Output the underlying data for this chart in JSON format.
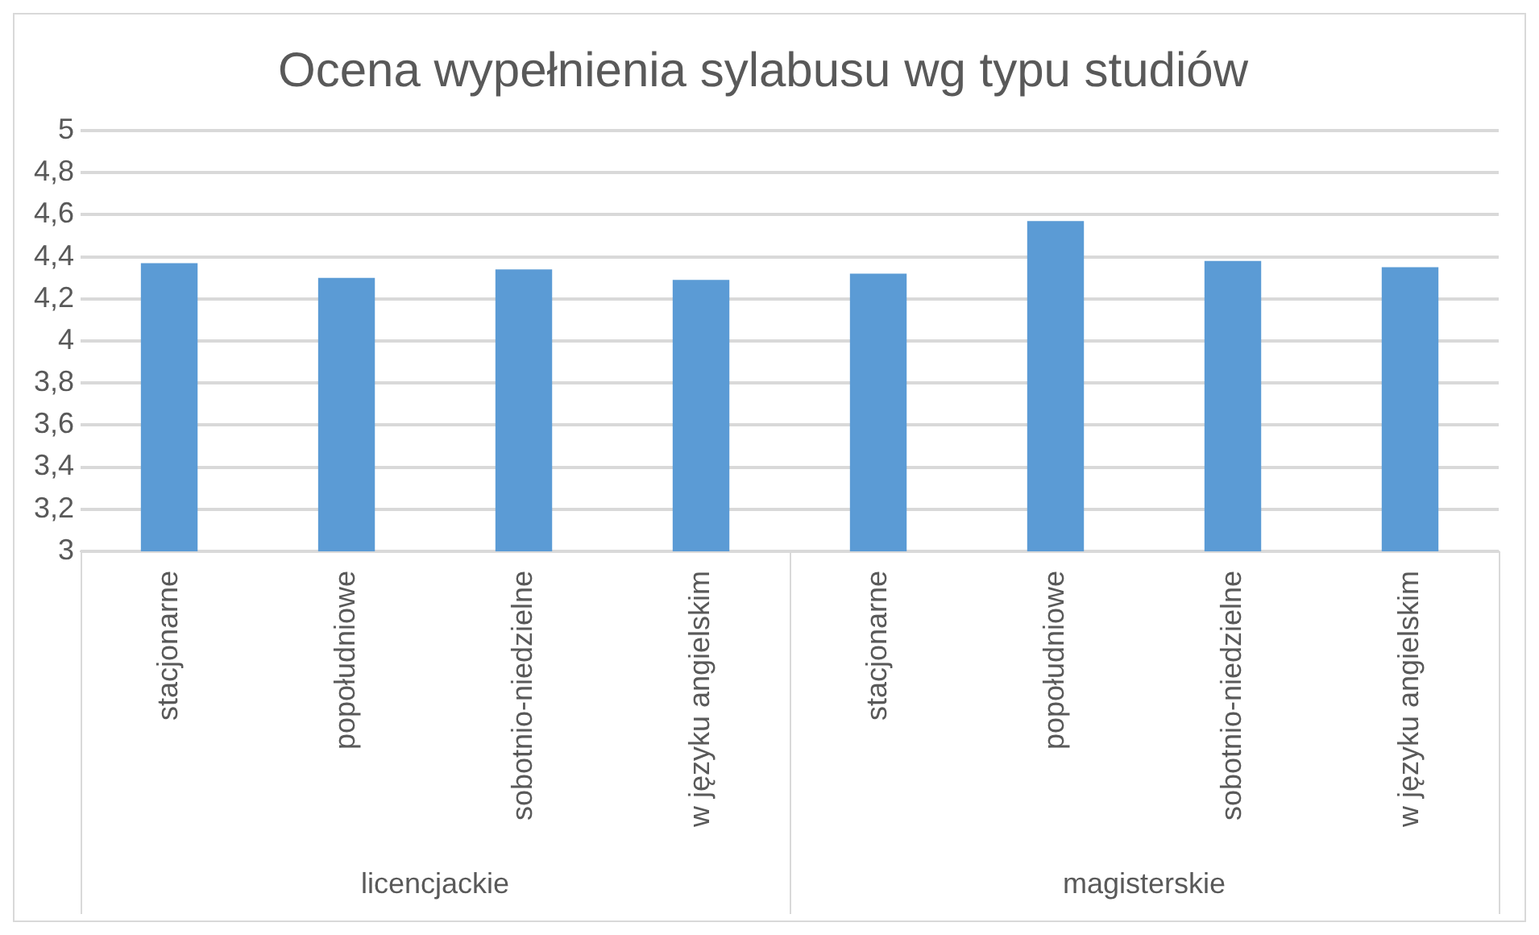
{
  "chart_data": {
    "type": "bar",
    "title": "Ocena wypełnienia sylabusu wg typu studiów",
    "categories": [
      "stacjonarne",
      "popołudniowe",
      "sobotnio-niedzielne",
      "w języku angielskim",
      "stacjonarne",
      "popołudniowe",
      "sobotnio-niedzielne",
      "w języku angielskim"
    ],
    "values": [
      4.37,
      4.3,
      4.34,
      4.29,
      4.32,
      4.57,
      4.38,
      4.35
    ],
    "color": "#5b9bd5",
    "annotations": [
      "licencjackie",
      "magisterskie"
    ],
    "ylim": [
      3,
      5
    ],
    "yticks": [
      3,
      {
        "value": 3.2,
        "label": "3,2"
      },
      {
        "value": 3.4,
        "label": "3,4"
      },
      {
        "value": 3.6,
        "label": "3,6"
      },
      {
        "value": 3.8,
        "label": "3,8"
      },
      4,
      {
        "value": 4.2,
        "label": "4,2"
      },
      {
        "value": 4.4,
        "label": "4,4"
      },
      {
        "value": 4.6,
        "label": "4,6"
      },
      {
        "value": 4.8,
        "label": "4,8"
      },
      5
    ],
    "grid": "y",
    "legend": false
  }
}
